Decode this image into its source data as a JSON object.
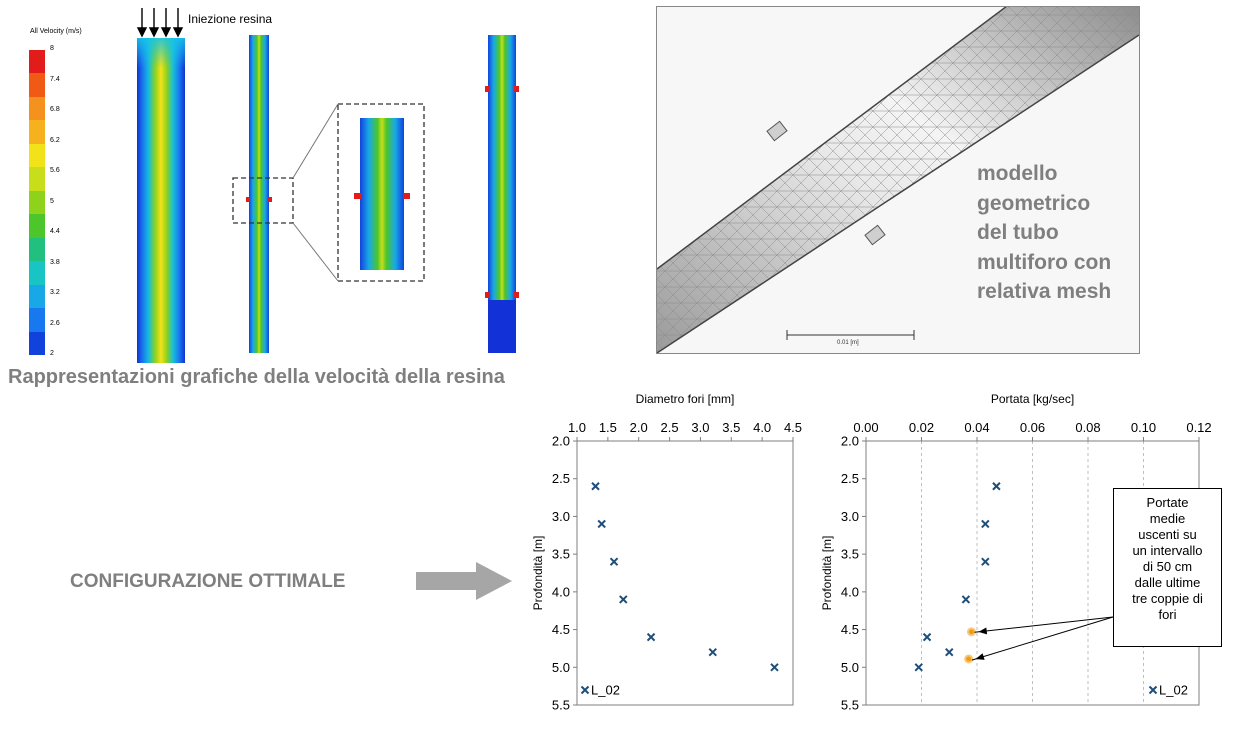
{
  "velocity_legend": {
    "title": "All Velocity (m/s)",
    "ticks": [
      "8",
      "7.4",
      "6.8",
      "6.2",
      "5.6",
      "5",
      "4.4",
      "3.8",
      "3.2",
      "2.6",
      "2"
    ],
    "colors": [
      "#e21b1b",
      "#f05a14",
      "#f5921e",
      "#f6b21e",
      "#f2e21a",
      "#c8de1a",
      "#8fd21c",
      "#4cc62a",
      "#22c07e",
      "#18c4c4",
      "#18a8e8",
      "#1878f0",
      "#1242dc"
    ]
  },
  "injection_label": "Iniezione resina",
  "velocity_caption": "Rappresentazioni grafiche della velocità della resina",
  "mesh": {
    "label_lines": [
      "modello",
      "geometrico",
      "del tubo",
      "multiforo con",
      "relativa mesh"
    ],
    "scale_label": "0.01 [m]"
  },
  "config_label": "CONFIGURAZIONE OTTIMALE",
  "callout": {
    "lines": [
      "Portate",
      "medie",
      "uscenti su",
      "un intervallo",
      "di 50 cm",
      "dalle ultime",
      "tre coppie di",
      "fori"
    ]
  },
  "colors": {
    "marker_blue": "#1f4e79",
    "marker_orange": "#f39c12",
    "gray_text": "#7f7f7f",
    "arrow_gray": "#a6a6a6"
  },
  "chart_data": [
    {
      "type": "scatter",
      "title": "Diametro fori [mm]",
      "xlabel": "Diametro fori [mm]",
      "ylabel": "Profondità [m]",
      "xlim": [
        1.0,
        4.5
      ],
      "ylim": [
        2.0,
        5.5
      ],
      "y_inverted": true,
      "x_axis_position": "top",
      "x_ticks": [
        "1.0",
        "1.5",
        "2.0",
        "2.5",
        "3.0",
        "3.5",
        "4.0",
        "4.5"
      ],
      "y_ticks": [
        "2.0",
        "2.5",
        "3.0",
        "3.5",
        "4.0",
        "4.5",
        "5.0",
        "5.5"
      ],
      "legend_position": "bottom-left",
      "series": [
        {
          "name": "L_02",
          "marker": "x",
          "x": [
            1.3,
            1.4,
            1.6,
            1.75,
            2.2,
            3.2,
            4.2
          ],
          "y": [
            2.6,
            3.1,
            3.6,
            4.1,
            4.6,
            4.8,
            5.0
          ]
        }
      ]
    },
    {
      "type": "scatter",
      "title": "Portata [kg/sec]",
      "xlabel": "Portata [kg/sec]",
      "ylabel": "Profondità [m]",
      "xlim": [
        0.0,
        0.12
      ],
      "ylim": [
        2.0,
        5.5
      ],
      "y_inverted": true,
      "x_axis_position": "top",
      "x_ticks": [
        "0.00",
        "0.02",
        "0.04",
        "0.06",
        "0.08",
        "0.10",
        "0.12"
      ],
      "y_ticks": [
        "2.0",
        "2.5",
        "3.0",
        "3.5",
        "4.0",
        "4.5",
        "5.0",
        "5.5"
      ],
      "grid_vertical": true,
      "legend_position": "bottom-right",
      "series": [
        {
          "name": "L_02",
          "marker": "x",
          "x": [
            0.047,
            0.043,
            0.043,
            0.036,
            0.022,
            0.03,
            0.019
          ],
          "y": [
            2.6,
            3.1,
            3.6,
            4.1,
            4.6,
            4.8,
            5.0
          ]
        }
      ],
      "highlighted_points": {
        "x": [
          0.038,
          0.037
        ],
        "y": [
          4.53,
          4.89
        ]
      }
    }
  ]
}
